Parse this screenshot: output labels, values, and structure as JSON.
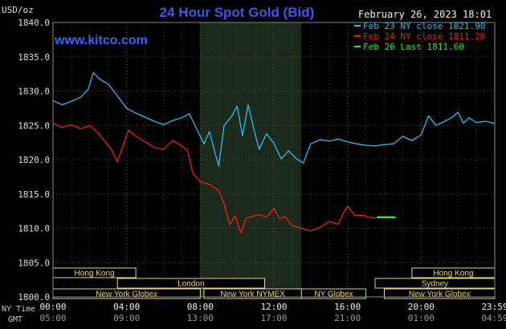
{
  "chart_data": {
    "type": "line",
    "title": "24 Hour Spot Gold (Bid)",
    "website": "www.kitco.com",
    "date_label": "February 26, 2023 18:01",
    "ylabel": "USD/oz",
    "ylim": [
      1800,
      1840
    ],
    "yticks": [
      1800,
      1805,
      1810,
      1815,
      1820,
      1825,
      1830,
      1835,
      1840
    ],
    "ytick_labels": [
      "1800.0",
      "1805.0",
      "1810.0",
      "1815.0",
      "1820.0",
      "1825.0",
      "1830.0",
      "1835.0",
      "1840.0"
    ],
    "xlim": [
      0,
      24
    ],
    "x_unit": "hours since 00:00 NY time",
    "xticks": [
      0,
      4,
      8,
      12,
      16,
      20,
      24
    ],
    "x_tick_labels_ny": [
      "00:00",
      "04:00",
      "08:00",
      "12:00",
      "16:00",
      "20:00",
      "23:59"
    ],
    "x_tick_labels_gmt": [
      "05:00",
      "09:00",
      "13:00",
      "17:00",
      "21:00",
      "01:00",
      "04:59"
    ],
    "row_label_ny": "NY Time",
    "row_label_gmt": "GMT",
    "grid": true,
    "legend_position": "top-right",
    "highlight_band": [
      8,
      13.5
    ],
    "sessions": [
      {
        "name": "Hong Kong",
        "start": 0,
        "end": 4.5,
        "row": 0
      },
      {
        "name": "Hong Kong",
        "start": 19.5,
        "end": 24,
        "row": 0
      },
      {
        "name": "London",
        "start": 3.5,
        "end": 11.5,
        "row": 1
      },
      {
        "name": "Sydney",
        "start": 17.5,
        "end": 24,
        "row": 1
      },
      {
        "name": "New York Globex",
        "start": 0,
        "end": 8,
        "row": 2
      },
      {
        "name": "New York NYMEX",
        "start": 8.2,
        "end": 13.5,
        "row": 2
      },
      {
        "name": "NY Globex",
        "start": 13.5,
        "end": 17,
        "row": 2
      },
      {
        "name": "New York Globex",
        "start": 18,
        "end": 24,
        "row": 2
      }
    ],
    "series": [
      {
        "name": "Feb 23 NY close 1821.90",
        "color": "#33bbee",
        "points": [
          [
            0,
            1828.6
          ],
          [
            0.5,
            1828.0
          ],
          [
            1,
            1828.5
          ],
          [
            1.5,
            1829.1
          ],
          [
            1.9,
            1830.2
          ],
          [
            2.2,
            1832.7
          ],
          [
            2.5,
            1831.8
          ],
          [
            3,
            1831.0
          ],
          [
            3.5,
            1829.3
          ],
          [
            4,
            1827.5
          ],
          [
            4.5,
            1826.8
          ],
          [
            5,
            1826.2
          ],
          [
            5.5,
            1825.6
          ],
          [
            6,
            1825.1
          ],
          [
            6.5,
            1825.7
          ],
          [
            7,
            1826.1
          ],
          [
            7.4,
            1826.7
          ],
          [
            7.8,
            1824.5
          ],
          [
            8.2,
            1822.3
          ],
          [
            8.5,
            1824.1
          ],
          [
            8.8,
            1821.0
          ],
          [
            9,
            1819.1
          ],
          [
            9.3,
            1825.0
          ],
          [
            9.7,
            1826.3
          ],
          [
            10,
            1827.8
          ],
          [
            10.3,
            1823.5
          ],
          [
            10.6,
            1828.0
          ],
          [
            10.9,
            1824.6
          ],
          [
            11.2,
            1821.5
          ],
          [
            11.6,
            1823.8
          ],
          [
            12,
            1822.4
          ],
          [
            12.4,
            1820.1
          ],
          [
            12.8,
            1821.3
          ],
          [
            13.2,
            1820.2
          ],
          [
            13.6,
            1819.5
          ],
          [
            14,
            1822.3
          ],
          [
            14.5,
            1822.9
          ],
          [
            15,
            1822.7
          ],
          [
            15.5,
            1823.0
          ],
          [
            16,
            1822.6
          ],
          [
            16.5,
            1822.3
          ],
          [
            17,
            1822.1
          ],
          [
            17.5,
            1822.0
          ],
          [
            18,
            1822.2
          ],
          [
            18.5,
            1822.3
          ],
          [
            19,
            1823.4
          ],
          [
            19.5,
            1822.8
          ],
          [
            20,
            1823.6
          ],
          [
            20.4,
            1826.4
          ],
          [
            20.8,
            1825.0
          ],
          [
            21.3,
            1825.6
          ],
          [
            21.7,
            1826.2
          ],
          [
            22,
            1826.9
          ],
          [
            22.3,
            1825.3
          ],
          [
            22.6,
            1826.1
          ],
          [
            23,
            1825.4
          ],
          [
            23.5,
            1825.6
          ],
          [
            24,
            1825.3
          ]
        ]
      },
      {
        "name": "Feb 24 NY close 1811.20",
        "color": "#ee2211",
        "points": [
          [
            0,
            1825.3
          ],
          [
            0.5,
            1824.7
          ],
          [
            1,
            1825.1
          ],
          [
            1.5,
            1824.5
          ],
          [
            2,
            1825.0
          ],
          [
            2.4,
            1824.0
          ],
          [
            2.8,
            1822.7
          ],
          [
            3.2,
            1821.4
          ],
          [
            3.5,
            1819.7
          ],
          [
            3.8,
            1822.0
          ],
          [
            4.1,
            1824.3
          ],
          [
            4.5,
            1823.4
          ],
          [
            5,
            1822.6
          ],
          [
            5.5,
            1821.8
          ],
          [
            6,
            1821.5
          ],
          [
            6.5,
            1822.8
          ],
          [
            7,
            1822.0
          ],
          [
            7.3,
            1821.4
          ],
          [
            7.6,
            1818.0
          ],
          [
            8,
            1816.8
          ],
          [
            8.5,
            1816.4
          ],
          [
            9,
            1815.5
          ],
          [
            9.3,
            1813.6
          ],
          [
            9.6,
            1810.5
          ],
          [
            9.9,
            1811.8
          ],
          [
            10.2,
            1809.3
          ],
          [
            10.5,
            1811.5
          ],
          [
            10.8,
            1811.7
          ],
          [
            11.2,
            1812.0
          ],
          [
            11.6,
            1811.6
          ],
          [
            12,
            1812.9
          ],
          [
            12.3,
            1811.4
          ],
          [
            12.6,
            1811.7
          ],
          [
            13,
            1810.4
          ],
          [
            13.5,
            1810.0
          ],
          [
            14,
            1809.6
          ],
          [
            14.5,
            1810.1
          ],
          [
            15,
            1811.0
          ],
          [
            15.5,
            1810.6
          ],
          [
            15.8,
            1812.3
          ],
          [
            16,
            1813.2
          ],
          [
            16.4,
            1811.9
          ],
          [
            16.8,
            1811.9
          ],
          [
            17.2,
            1811.6
          ],
          [
            17.6,
            1811.5
          ]
        ]
      },
      {
        "name": "Feb 26 Last 1811.60",
        "color": "#22ee22",
        "points": [
          [
            17.6,
            1811.6
          ],
          [
            18.6,
            1811.6
          ]
        ]
      }
    ]
  }
}
